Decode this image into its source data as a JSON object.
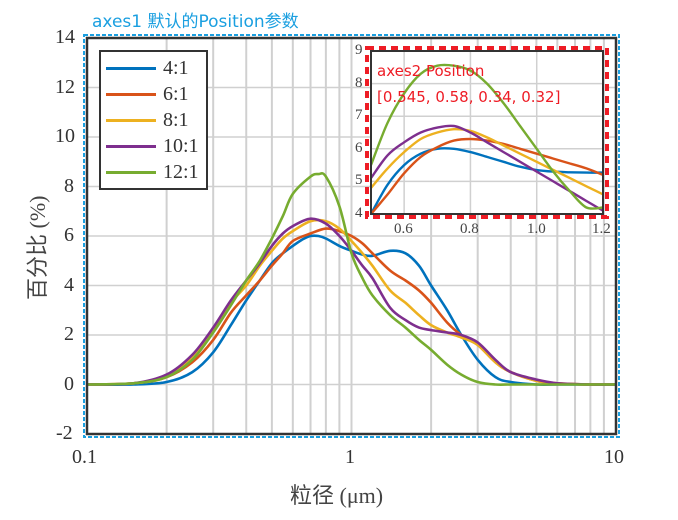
{
  "annotations": {
    "axes1": "axes1 默认的Position参数",
    "axes2_line1": "axes2 Position",
    "axes2_line2": "[0.545, 0.58, 0.34, 0.32]"
  },
  "colors": {
    "axes1_frame": "#1a9fe0",
    "axes2_frame": "#ee1c25",
    "grid": "#d0d0d0",
    "axis": "#333333"
  },
  "chart_data": [
    {
      "type": "line",
      "title": "",
      "xlabel": "粒径 (μm)",
      "ylabel": "百分比 (%)",
      "xscale": "log",
      "xlim": [
        0.1,
        10
      ],
      "ylim": [
        -2,
        14
      ],
      "xticks": [
        "0.1",
        "1",
        "10"
      ],
      "yticks": [
        "-2",
        "0",
        "2",
        "4",
        "6",
        "8",
        "10",
        "12",
        "14"
      ],
      "grid": true,
      "legend_position": "upper left",
      "series": [
        {
          "name": "4:1",
          "color": "#0072BD",
          "x": [
            0.1,
            0.15,
            0.2,
            0.25,
            0.3,
            0.35,
            0.4,
            0.45,
            0.5,
            0.55,
            0.6,
            0.65,
            0.7,
            0.75,
            0.8,
            0.9,
            1.0,
            1.1,
            1.2,
            1.4,
            1.6,
            1.8,
            2.0,
            2.3,
            2.6,
            3.0,
            3.5,
            4.0,
            5.0,
            6.0,
            8.0,
            10.0
          ],
          "y": [
            0,
            0,
            0.1,
            0.5,
            1.3,
            2.4,
            3.4,
            4.2,
            4.9,
            5.3,
            5.6,
            5.85,
            6.0,
            6.0,
            5.9,
            5.6,
            5.4,
            5.25,
            5.2,
            5.4,
            5.3,
            4.8,
            4.0,
            3.0,
            2.0,
            1.0,
            0.3,
            0.1,
            0,
            0,
            0,
            0
          ]
        },
        {
          "name": "6:1",
          "color": "#D95319",
          "x": [
            0.1,
            0.15,
            0.2,
            0.25,
            0.3,
            0.35,
            0.4,
            0.45,
            0.5,
            0.55,
            0.6,
            0.7,
            0.8,
            0.9,
            1.0,
            1.1,
            1.2,
            1.4,
            1.6,
            1.8,
            2.0,
            2.3,
            2.6,
            3.0,
            3.5,
            4.0,
            5.0,
            6.0,
            8.0,
            10.0
          ],
          "y": [
            0,
            0.05,
            0.3,
            0.9,
            1.8,
            2.9,
            3.6,
            4.2,
            4.8,
            5.3,
            5.8,
            6.1,
            6.3,
            6.2,
            6.0,
            5.7,
            5.3,
            4.6,
            4.2,
            3.8,
            3.3,
            2.5,
            2.0,
            1.6,
            0.9,
            0.5,
            0.15,
            0.05,
            0,
            0
          ]
        },
        {
          "name": "8:1",
          "color": "#EDB120",
          "x": [
            0.1,
            0.15,
            0.2,
            0.25,
            0.3,
            0.35,
            0.4,
            0.45,
            0.5,
            0.55,
            0.6,
            0.7,
            0.8,
            0.9,
            1.0,
            1.1,
            1.2,
            1.4,
            1.6,
            1.8,
            2.0,
            2.3,
            2.6,
            3.0,
            3.5,
            4.0,
            5.0,
            6.0,
            8.0,
            10.0
          ],
          "y": [
            0,
            0.05,
            0.3,
            1.1,
            2.2,
            3.3,
            4.0,
            4.8,
            5.4,
            5.9,
            6.2,
            6.6,
            6.6,
            6.3,
            5.8,
            5.3,
            4.8,
            3.8,
            3.3,
            2.8,
            2.4,
            2.1,
            1.9,
            1.6,
            0.9,
            0.5,
            0.15,
            0.05,
            0,
            0
          ]
        },
        {
          "name": "10:1",
          "color": "#7E2F8E",
          "x": [
            0.1,
            0.15,
            0.2,
            0.25,
            0.3,
            0.35,
            0.4,
            0.45,
            0.5,
            0.55,
            0.6,
            0.7,
            0.8,
            0.9,
            1.0,
            1.1,
            1.2,
            1.4,
            1.6,
            1.8,
            2.0,
            2.3,
            2.6,
            3.0,
            3.5,
            4.0,
            5.0,
            6.0,
            8.0,
            10.0
          ],
          "y": [
            0,
            0.05,
            0.4,
            1.2,
            2.3,
            3.4,
            4.2,
            4.9,
            5.6,
            6.1,
            6.4,
            6.7,
            6.5,
            6.0,
            5.4,
            4.8,
            4.3,
            3.1,
            2.6,
            2.3,
            2.2,
            2.1,
            2.0,
            1.7,
            1.0,
            0.5,
            0.2,
            0.05,
            0,
            0
          ]
        },
        {
          "name": "12:1",
          "color": "#77AC30",
          "x": [
            0.1,
            0.15,
            0.2,
            0.25,
            0.3,
            0.35,
            0.4,
            0.45,
            0.5,
            0.55,
            0.6,
            0.7,
            0.75,
            0.8,
            0.9,
            1.0,
            1.1,
            1.2,
            1.4,
            1.6,
            1.8,
            2.0,
            2.3,
            2.6,
            3.0,
            3.5,
            4.0,
            5.0,
            6.0,
            8.0,
            10.0
          ],
          "y": [
            0,
            0.05,
            0.3,
            1.0,
            2.1,
            3.2,
            4.2,
            5.0,
            5.9,
            6.8,
            7.7,
            8.4,
            8.5,
            8.4,
            7.2,
            5.3,
            4.3,
            3.6,
            2.8,
            2.3,
            1.8,
            1.4,
            0.8,
            0.4,
            0.1,
            0,
            0,
            0,
            0,
            0,
            0
          ]
        }
      ]
    },
    {
      "type": "line",
      "title": "inset (axes2)",
      "xscale": "linear",
      "xlim": [
        0.5,
        1.2
      ],
      "ylim": [
        4,
        9
      ],
      "xticks": [
        "0.6",
        "0.8",
        "1.0",
        "1.2"
      ],
      "yticks": [
        "4",
        "5",
        "6",
        "7",
        "8",
        "9"
      ],
      "grid": true,
      "series": [
        {
          "name": "4:1",
          "color": "#0072BD",
          "x": [
            0.5,
            0.55,
            0.6,
            0.65,
            0.7,
            0.75,
            0.8,
            0.85,
            0.9,
            0.95,
            1.0,
            1.05,
            1.1,
            1.15,
            1.2
          ],
          "y": [
            4.0,
            4.9,
            5.5,
            5.85,
            6.0,
            6.0,
            5.9,
            5.75,
            5.6,
            5.45,
            5.35,
            5.3,
            5.28,
            5.27,
            5.27
          ]
        },
        {
          "name": "6:1",
          "color": "#D95319",
          "x": [
            0.5,
            0.55,
            0.6,
            0.65,
            0.7,
            0.75,
            0.8,
            0.85,
            0.9,
            0.95,
            1.0,
            1.05,
            1.1,
            1.15,
            1.2
          ],
          "y": [
            4.0,
            4.6,
            5.25,
            5.75,
            6.05,
            6.25,
            6.3,
            6.25,
            6.15,
            6.0,
            5.85,
            5.7,
            5.55,
            5.4,
            5.2
          ]
        },
        {
          "name": "8:1",
          "color": "#EDB120",
          "x": [
            0.5,
            0.55,
            0.6,
            0.65,
            0.7,
            0.75,
            0.8,
            0.85,
            0.9,
            0.95,
            1.0,
            1.05,
            1.1,
            1.15,
            1.2
          ],
          "y": [
            4.8,
            5.4,
            5.9,
            6.3,
            6.5,
            6.6,
            6.55,
            6.35,
            6.1,
            5.85,
            5.6,
            5.35,
            5.1,
            4.85,
            4.6
          ]
        },
        {
          "name": "10:1",
          "color": "#7E2F8E",
          "x": [
            0.5,
            0.55,
            0.6,
            0.65,
            0.7,
            0.75,
            0.8,
            0.85,
            0.9,
            0.95,
            1.0,
            1.05,
            1.1,
            1.15,
            1.2
          ],
          "y": [
            5.1,
            5.8,
            6.2,
            6.5,
            6.65,
            6.7,
            6.5,
            6.2,
            5.9,
            5.6,
            5.3,
            5.0,
            4.7,
            4.4,
            4.1
          ]
        },
        {
          "name": "12:1",
          "color": "#77AC30",
          "x": [
            0.5,
            0.55,
            0.6,
            0.65,
            0.7,
            0.75,
            0.8,
            0.85,
            0.9,
            0.95,
            1.0,
            1.05,
            1.1,
            1.15,
            1.2
          ],
          "y": [
            5.5,
            6.8,
            7.7,
            8.3,
            8.55,
            8.55,
            8.4,
            8.0,
            7.4,
            6.7,
            6.0,
            5.3,
            4.7,
            4.2,
            4.2
          ]
        }
      ]
    }
  ]
}
